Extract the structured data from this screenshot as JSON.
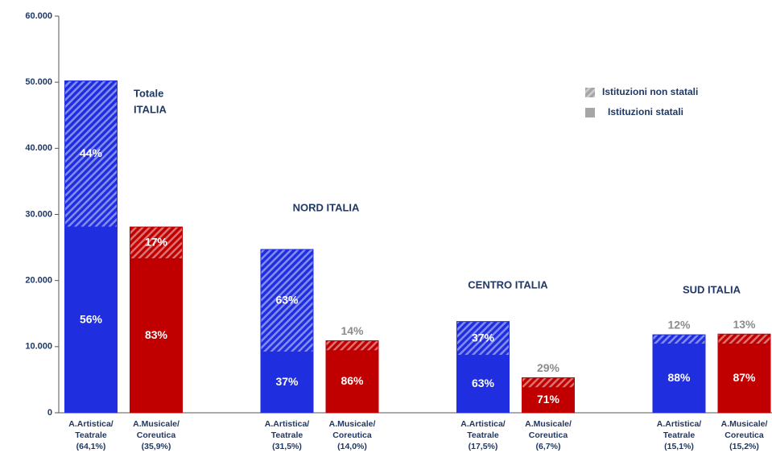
{
  "chart_data": {
    "type": "stacked_bar",
    "categories": [
      [
        "A.Artistica/",
        "Teatrale",
        "(64,1%)"
      ],
      [
        "A.Musicale/",
        "Coreutica",
        "(35,9%)"
      ],
      [
        "A.Artistica/",
        "Teatrale",
        "(31,5%)"
      ],
      [
        "A.Musicale/",
        "Coreutica",
        "(14,0%)"
      ],
      [
        "A.Artistica/",
        "Teatrale",
        "(17,5%)"
      ],
      [
        "A.Musicale/",
        "Coreutica",
        "(6,7%)"
      ],
      [
        "A.Artistica/",
        "Teatrale",
        "(15,1%)"
      ],
      [
        "A.Musicale/",
        "Coreutica",
        "(15,2%)"
      ]
    ],
    "groups": [
      [
        "Totale",
        "ITALIA"
      ],
      [
        "NORD ITALIA"
      ],
      [
        "CENTRO ITALIA"
      ],
      [
        "SUD ITALIA"
      ]
    ],
    "bar_colors": [
      "#1f2fe0",
      "#c00000",
      "#1f2fe0",
      "#c00000",
      "#1f2fe0",
      "#c00000",
      "#1f2fe0",
      "#c00000"
    ],
    "series": [
      {
        "name": "Istituzioni statali",
        "color": "#a6a6a6",
        "hatched": false,
        "values": [
          28100,
          23300,
          9200,
          9400,
          8700,
          3800,
          10400,
          10400
        ],
        "value_labels": [
          "56%",
          "83%",
          "37%",
          "86%",
          "63%",
          "71%",
          "88%",
          "87%"
        ]
      },
      {
        "name": "Istituzioni non statali",
        "color": "#a6a6a6",
        "hatched": true,
        "values": [
          22100,
          4800,
          15500,
          1500,
          5100,
          1500,
          1400,
          1500
        ],
        "value_labels": [
          "44%",
          "17%",
          "63%",
          "14%",
          "37%",
          "29%",
          "12%",
          "13%"
        ]
      }
    ],
    "ylim": [
      0,
      60000
    ],
    "yticks": [
      0,
      {
        "value": 10000,
        "label": "10.000"
      },
      {
        "value": 20000,
        "label": "20.000"
      },
      {
        "value": 30000,
        "label": "30.000"
      },
      {
        "value": 40000,
        "label": "40.000"
      },
      {
        "value": 50000,
        "label": "50.000"
      },
      {
        "value": 60000,
        "label": "60.000"
      }
    ]
  }
}
